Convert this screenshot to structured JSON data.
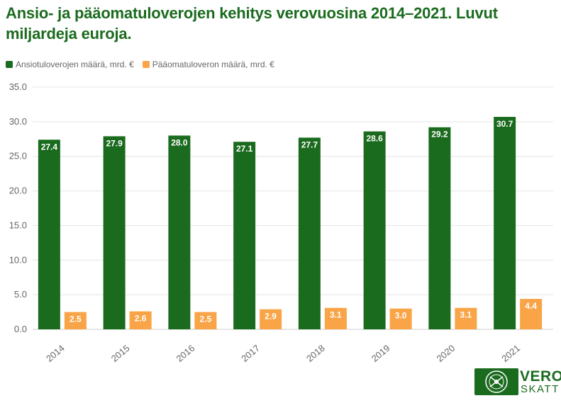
{
  "title": "Ansio- ja pääomatuloverojen kehitys verovuosina 2014–2021. Luvut miljardeja euroja.",
  "logo": {
    "line1": "VERO",
    "line2": "SKATT"
  },
  "colors": {
    "green": "#1b6b1f",
    "orange": "#f9a447",
    "title": "#1b6b1f",
    "grid": "#e4e4e4",
    "axis_text": "#666666"
  },
  "chart_data": {
    "type": "bar",
    "categories": [
      "2014",
      "2015",
      "2016",
      "2017",
      "2018",
      "2019",
      "2020",
      "2021"
    ],
    "series": [
      {
        "name": "Ansiotuloverojen määrä, mrd. €",
        "color": "#1b6b1f",
        "values": [
          27.4,
          27.9,
          28.0,
          27.1,
          27.7,
          28.6,
          29.2,
          30.7
        ],
        "labels": [
          "27.4",
          "27.9",
          "28.0",
          "27.1",
          "27.7",
          "28.6",
          "29.2",
          "30.7"
        ]
      },
      {
        "name": "Pääomatuloveron määrä, mrd. €",
        "color": "#f9a447",
        "values": [
          2.5,
          2.6,
          2.5,
          2.9,
          3.1,
          3.0,
          3.1,
          4.4
        ],
        "labels": [
          "2.5",
          "2.6",
          "2.5",
          "2.9",
          "3.1",
          "3.0",
          "3.1",
          "4.4"
        ]
      }
    ],
    "ylim": [
      0,
      35
    ],
    "yticks": [
      "0.0",
      "5.0",
      "10.0",
      "15.0",
      "20.0",
      "25.0",
      "30.0",
      "35.0"
    ],
    "grid": true,
    "legend": "top-left",
    "xlabel": "",
    "ylabel": ""
  }
}
